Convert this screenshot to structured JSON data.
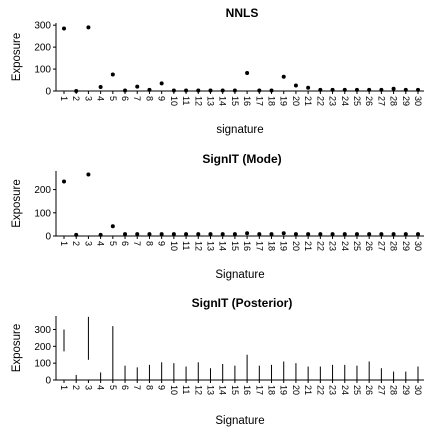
{
  "chart_data": [
    {
      "type": "scatter",
      "title": "NNLS",
      "xlabel": "signature",
      "ylabel": "Exposure",
      "categories": [
        "1",
        "2",
        "3",
        "4",
        "5",
        "6",
        "7",
        "8",
        "9",
        "10",
        "11",
        "12",
        "13",
        "14",
        "15",
        "16",
        "17",
        "18",
        "19",
        "20",
        "21",
        "22",
        "23",
        "24",
        "25",
        "26",
        "27",
        "28",
        "29",
        "30"
      ],
      "yticks": [
        0,
        100,
        200,
        300
      ],
      "ylim": [
        0,
        310
      ],
      "values": [
        285,
        0,
        290,
        18,
        75,
        2,
        20,
        5,
        35,
        2,
        2,
        2,
        2,
        2,
        2,
        82,
        2,
        2,
        65,
        25,
        15,
        5,
        5,
        5,
        5,
        5,
        5,
        10,
        5,
        5
      ]
    },
    {
      "type": "scatter",
      "title": "SignIT (Mode)",
      "xlabel": "Signature",
      "ylabel": "Exposure",
      "categories": [
        "1",
        "2",
        "3",
        "4",
        "5",
        "6",
        "7",
        "8",
        "9",
        "10",
        "11",
        "12",
        "13",
        "14",
        "15",
        "16",
        "17",
        "18",
        "19",
        "20",
        "21",
        "22",
        "23",
        "24",
        "25",
        "26",
        "27",
        "28",
        "29",
        "30"
      ],
      "yticks": [
        0,
        100,
        200
      ],
      "ylim": [
        0,
        280
      ],
      "values": [
        235,
        5,
        265,
        5,
        42,
        8,
        8,
        8,
        8,
        8,
        8,
        8,
        8,
        8,
        8,
        12,
        8,
        8,
        12,
        8,
        8,
        8,
        8,
        8,
        8,
        8,
        8,
        8,
        8,
        8
      ]
    },
    {
      "type": "range",
      "title": "SignIT (Posterior)",
      "xlabel": "Signature",
      "ylabel": "Exposure",
      "categories": [
        "1",
        "2",
        "3",
        "4",
        "5",
        "6",
        "7",
        "8",
        "9",
        "10",
        "11",
        "12",
        "13",
        "14",
        "15",
        "16",
        "17",
        "18",
        "19",
        "20",
        "21",
        "22",
        "23",
        "24",
        "25",
        "26",
        "27",
        "28",
        "29",
        "30"
      ],
      "yticks": [
        0,
        100,
        200,
        300
      ],
      "ylim": [
        0,
        380
      ],
      "series": [
        {
          "low": [
            170,
            0,
            120,
            0,
            0,
            0,
            0,
            0,
            0,
            0,
            0,
            0,
            0,
            0,
            0,
            0,
            0,
            0,
            0,
            0,
            0,
            0,
            0,
            0,
            0,
            0,
            0,
            0,
            0,
            0
          ],
          "high": [
            300,
            30,
            375,
            45,
            320,
            85,
            75,
            90,
            105,
            100,
            80,
            105,
            70,
            95,
            85,
            150,
            85,
            90,
            110,
            100,
            80,
            80,
            90,
            90,
            85,
            110,
            70,
            50,
            50,
            80
          ]
        }
      ]
    }
  ]
}
